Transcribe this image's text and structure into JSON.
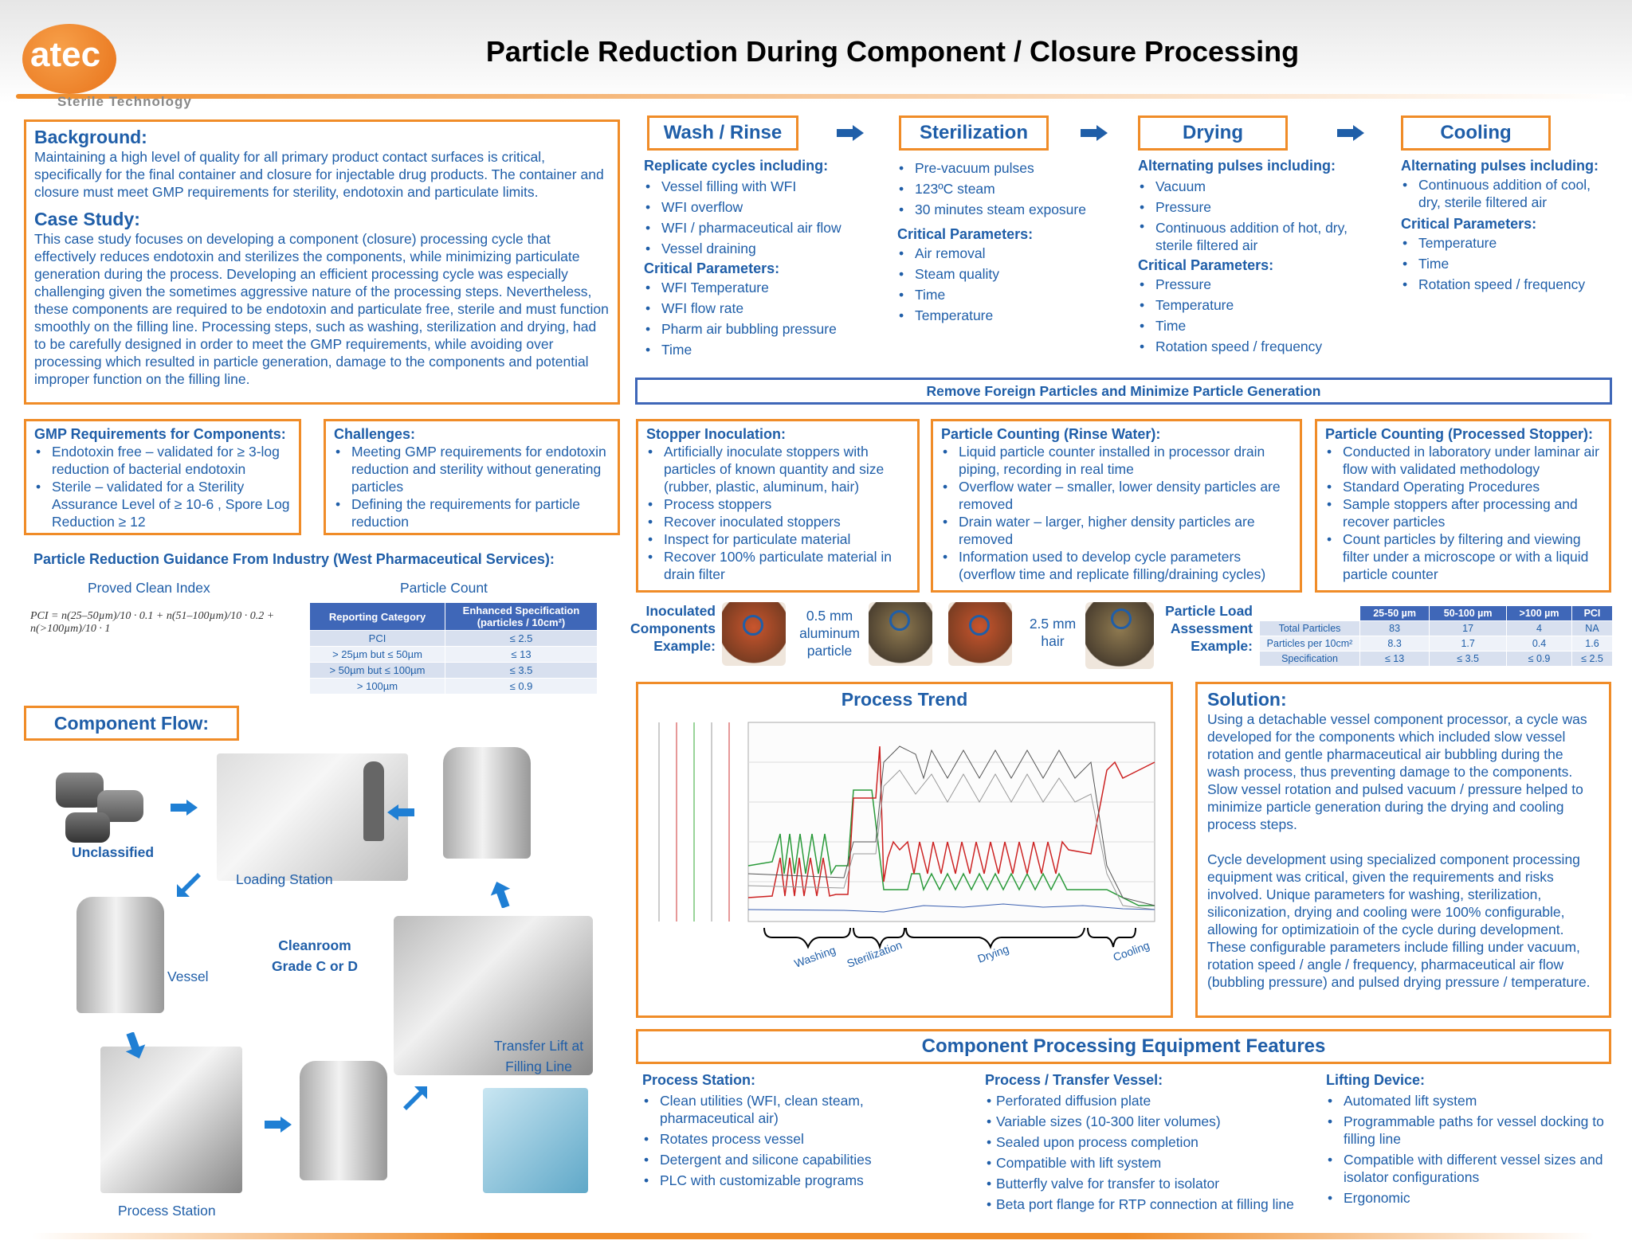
{
  "header": {
    "logo_text": "atec",
    "logo_sub": "Sterile Technology",
    "title": "Particle Reduction During Component / Closure Processing"
  },
  "background": {
    "heading": "Background:",
    "text": "Maintaining a high level of quality for all primary product contact surfaces is critical, specifically for the final container and closure for injectable drug products.  The container and closure must meet GMP requirements for sterility, endotoxin and particulate limits.",
    "case_heading": "Case Study:",
    "case_text": "This case study focuses on developing a component (closure) processing cycle that effectively reduces endotoxin and sterilizes the components, while minimizing particulate generation during the process.  Developing an efficient processing cycle was especially challenging given the sometimes aggressive nature of the processing steps.  Nevertheless, these components are required to be endotoxin and particulate free, sterile and must function smoothly on the filling line.  Processing steps, such as washing, sterilization and drying, had to be carefully designed in order to meet the GMP requirements, while avoiding over processing which resulted in particle generation, damage to the components and potential improper function on the filling line."
  },
  "steps": [
    {
      "title": "Wash / Rinse",
      "sub1": "Replicate cycles including:",
      "items1": [
        "Vessel filling with WFI",
        "WFI overflow",
        "WFI / pharmaceutical air flow",
        "Vessel draining"
      ],
      "sub2": "Critical Parameters:",
      "items2": [
        "WFI Temperature",
        "WFI flow rate",
        "Pharm air bubbling pressure",
        "Time"
      ]
    },
    {
      "title": "Sterilization",
      "sub1": "",
      "items1": [
        "Pre-vacuum pulses",
        "123ºC steam",
        "30 minutes steam exposure"
      ],
      "sub2": "Critical Parameters:",
      "items2": [
        "Air removal",
        "Steam quality",
        "Time",
        "Temperature"
      ]
    },
    {
      "title": "Drying",
      "sub1": "Alternating pulses including:",
      "items1": [
        "Vacuum",
        "Pressure",
        "Continuous addition of hot, dry, sterile filtered air"
      ],
      "sub2": "Critical Parameters:",
      "items2": [
        "Pressure",
        "Temperature",
        "Time",
        "Rotation speed / frequency"
      ]
    },
    {
      "title": "Cooling",
      "sub1": "Alternating pulses including:",
      "items1": [
        "Continuous addition of cool, dry, sterile filtered air"
      ],
      "sub2": "Critical Parameters:",
      "items2": [
        "Temperature",
        "Time",
        "Rotation speed / frequency"
      ]
    }
  ],
  "banner": "Remove Foreign Particles and Minimize Particle Generation",
  "gmp": {
    "heading": "GMP Requirements for Components:",
    "items": [
      "Endotoxin free – validated for ≥ 3-log reduction of bacterial endotoxin",
      "Sterile – validated for a Sterility Assurance Level of ≥ 10-6 , Spore Log Reduction ≥ 12"
    ]
  },
  "challenges": {
    "heading": "Challenges:",
    "items": [
      "Meeting GMP requirements for endotoxin reduction and sterility without generating particles",
      "Defining the requirements for particle reduction"
    ]
  },
  "stopper": {
    "heading": "Stopper Inoculation:",
    "items": [
      "Artificially inoculate stoppers with particles of known quantity and size (rubber, plastic, aluminum, hair)",
      "Process stoppers",
      "Recover inoculated stoppers",
      "Inspect for particulate material",
      "Recover 100% particulate material in drain filter"
    ]
  },
  "rinse_count": {
    "heading": "Particle Counting (Rinse Water):",
    "items": [
      "Liquid particle counter installed in processor drain piping, recording in real time",
      "Overflow water – smaller, lower density particles are removed",
      "Drain water – larger, higher density particles are removed",
      "Information used to develop cycle parameters (overflow time and replicate filling/draining cycles)"
    ]
  },
  "stopper_count": {
    "heading": "Particle Counting (Processed Stopper):",
    "items": [
      "Conducted in laboratory under laminar air flow with validated methodology",
      "Standard Operating Procedures",
      "Sample stoppers after processing and recover particles",
      "Count particles by filtering and viewing filter under a microscope or with a liquid particle counter"
    ]
  },
  "guidance": {
    "heading": "Particle Reduction Guidance From Industry (West Pharmaceutical Services):",
    "pci_label": "Proved Clean Index",
    "count_label": "Particle Count",
    "formula": "PCI = n(25–50µm)/10 · 0.1 + n(51–100µm)/10 · 0.2 + n(>100µm)/10 · 1",
    "table_headers": [
      "Reporting Category",
      "Enhanced Specification (particles / 10cm²)"
    ],
    "table_rows": [
      [
        "PCI",
        "≤ 2.5"
      ],
      [
        "> 25µm but ≤ 50µm",
        "≤ 13"
      ],
      [
        "> 50µm but ≤ 100µm",
        "≤ 3.5"
      ],
      [
        "> 100µm",
        "≤ 0.9"
      ]
    ]
  },
  "inoculated": {
    "label": "Inoculated Components Example:",
    "cap1": "0.5 mm aluminum particle",
    "cap2": "2.5 mm hair"
  },
  "load": {
    "label": "Particle Load Assessment Example:",
    "headers": [
      "",
      "25-50 µm",
      "50-100 µm",
      ">100 µm",
      "PCI"
    ],
    "rows": [
      [
        "Total Particles",
        "83",
        "17",
        "4",
        "NA"
      ],
      [
        "Particles per 10cm²",
        "8.3",
        "1.7",
        "0.4",
        "1.6"
      ],
      [
        "Specification",
        "≤ 13",
        "≤ 3.5",
        "≤ 0.9",
        "≤ 2.5"
      ]
    ]
  },
  "component_flow": {
    "heading": "Component Flow:",
    "labels": [
      "Unclassified",
      "Loading Station",
      "Vessel",
      "Cleanroom Grade C or D",
      "Transfer Lift at Filling Line",
      "Process Station"
    ]
  },
  "trend": {
    "heading": "Process Trend",
    "phases": [
      "Washing",
      "Sterilization",
      "Drying",
      "Cooling"
    ]
  },
  "solution": {
    "heading": "Solution:",
    "p1": "Using a detachable vessel component processor, a cycle was developed for the components which included slow vessel rotation and gentle pharmaceutical air bubbling during the wash process, thus preventing damage to the components.  Slow vessel rotation and pulsed vacuum / pressure helped to minimize particle generation during the drying and cooling process steps.",
    "p2": "Cycle development using specialized component processing equipment was critical, given the requirements and risks involved.  Unique parameters for washing, sterilization, siliconization, drying and cooling were 100% configurable, allowing for optimizatioin of the cycle during development.  These configurable parameters include filling under vacuum, rotation speed / angle / frequency, pharmaceutical air flow (bubbling pressure) and pulsed drying pressure / temperature."
  },
  "equipment": {
    "heading": "Component Processing Equipment Features",
    "cols": [
      {
        "title": "Process Station:",
        "items": [
          "Clean utilities (WFI, clean steam, pharmaceutical air)",
          "Rotates process vessel",
          "Detergent and silicone capabilities",
          "PLC with customizable programs"
        ]
      },
      {
        "title": "Process / Transfer Vessel:",
        "items": [
          "Perforated diffusion plate",
          "Variable sizes (10-300 liter volumes)",
          "Sealed upon process completion",
          "Compatible with lift system",
          "Butterfly valve for transfer to isolator",
          "Beta port flange for RTP connection at filling line"
        ]
      },
      {
        "title": "Lifting Device:",
        "items": [
          "Automated lift system",
          "Programmable paths for vessel docking to filling line",
          "Compatible with different vessel sizes and isolator configurations",
          "Ergonomic"
        ]
      }
    ]
  },
  "colors": {
    "accent": "#f08c28",
    "brand": "#1f5ea8"
  }
}
